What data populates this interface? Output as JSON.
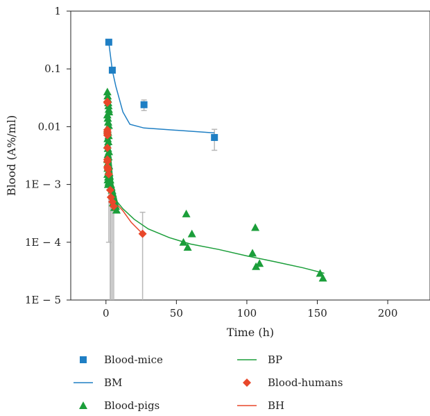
{
  "chart_data": {
    "type": "scatter",
    "title": "",
    "xlabel": "Time (h)",
    "ylabel": "Blood (A%/ml)",
    "xlim": [
      -25,
      230
    ],
    "ylim": [
      1e-05,
      1
    ],
    "yscale": "log",
    "grid": false,
    "x_ticks": [
      {
        "value": 0,
        "label": "0"
      },
      {
        "value": 50,
        "label": "50"
      },
      {
        "value": 100,
        "label": "100"
      },
      {
        "value": 150,
        "label": "150"
      },
      {
        "value": 200,
        "label": "200"
      }
    ],
    "y_ticks": [
      {
        "value": 1,
        "label": "1"
      },
      {
        "value": 0.1,
        "label": "0.1"
      },
      {
        "value": 0.01,
        "label": "0.01"
      },
      {
        "value": 0.001,
        "label": "1E − 3"
      },
      {
        "value": 0.0001,
        "label": "1E − 4"
      },
      {
        "value": 1e-05,
        "label": "1E − 5"
      }
    ],
    "legend_position": "bottom",
    "series": [
      {
        "name": "Blood-mice",
        "kind": "points",
        "marker": "square",
        "color": "#1f7fc4",
        "x": [
          2,
          4.5,
          27,
          77
        ],
        "y": [
          0.29,
          0.095,
          0.024,
          0.0065
        ],
        "err_low": [
          null,
          null,
          0.019,
          0.0039
        ],
        "err_high": [
          null,
          null,
          0.029,
          0.009
        ]
      },
      {
        "name": "BM",
        "kind": "line",
        "color": "#1f7fc4",
        "x": [
          2,
          4.5,
          7,
          12,
          17,
          27,
          77
        ],
        "y": [
          0.29,
          0.095,
          0.05,
          0.018,
          0.011,
          0.0095,
          0.0078
        ]
      },
      {
        "name": "Blood-pigs",
        "kind": "points",
        "marker": "triangle",
        "color": "#1b9e3a",
        "x": [
          1,
          1.2,
          1.4,
          1.6,
          1.8,
          2,
          2.2,
          1,
          1.3,
          1.6,
          2,
          1.1,
          1.5,
          1.9,
          1.2,
          1.7,
          1,
          1.4,
          2.1,
          1.3,
          1.8,
          1,
          1.5,
          2.2,
          1.2,
          1.8,
          1.1,
          1.6,
          1.3,
          1.9,
          1.5,
          2.4,
          2.7,
          3,
          3.5,
          3.9,
          4.2,
          4.8,
          5.5,
          6.2,
          7,
          5,
          6,
          7.5,
          55,
          57,
          58,
          61,
          104,
          106,
          106.5,
          109,
          152,
          154
        ],
        "y": [
          0.04,
          0.034,
          0.03,
          0.026,
          0.023,
          0.02,
          0.018,
          0.016,
          0.014,
          0.012,
          0.0105,
          0.009,
          0.008,
          0.007,
          0.0062,
          0.0055,
          0.0048,
          0.0042,
          0.0037,
          0.0033,
          0.003,
          0.0027,
          0.0024,
          0.0021,
          0.0019,
          0.0017,
          0.0015,
          0.00135,
          0.0012,
          0.0011,
          0.001,
          0.0016,
          0.0014,
          0.0012,
          0.001,
          0.0009,
          0.0008,
          0.0007,
          0.00058,
          0.0005,
          0.00042,
          0.00048,
          0.0004,
          0.00036,
          0.0001,
          0.00031,
          8.2e-05,
          0.00014,
          6.5e-05,
          0.00018,
          3.8e-05,
          4.3e-05,
          2.9e-05,
          2.4e-05
        ]
      },
      {
        "name": "BP",
        "kind": "line",
        "color": "#1b9e3a",
        "x": [
          2,
          3,
          5,
          8,
          12,
          20,
          30,
          45,
          60,
          80,
          100,
          120,
          140,
          155
        ],
        "y": [
          0.04,
          0.004,
          0.001,
          0.0005,
          0.00038,
          0.00025,
          0.00017,
          0.00012,
          9.3e-05,
          7.5e-05,
          5.8e-05,
          4.6e-05,
          3.6e-05,
          2.9e-05
        ]
      },
      {
        "name": "Blood-humans",
        "kind": "points",
        "marker": "diamond",
        "color": "#e8472a",
        "x": [
          1,
          1,
          1,
          1,
          1,
          1,
          1,
          1,
          1,
          1,
          1.2,
          1.5,
          2,
          3,
          3.5,
          4.5,
          5.5,
          26
        ],
        "y": [
          0.027,
          0.026,
          0.0088,
          0.0082,
          0.0076,
          0.0071,
          0.0043,
          0.0027,
          0.0025,
          0.002,
          0.0019,
          0.0018,
          0.0015,
          0.0008,
          0.0006,
          0.0005,
          0.00042,
          0.00014
        ],
        "err_low": [
          null,
          null,
          null,
          null,
          null,
          null,
          null,
          null,
          null,
          null,
          null,
          null,
          0.0001,
          1e-05,
          1e-05,
          1e-05,
          1e-05,
          1e-05
        ],
        "err_high": [
          null,
          null,
          null,
          null,
          null,
          null,
          null,
          null,
          null,
          null,
          null,
          null,
          0.003,
          0.0011,
          0.0009,
          0.0008,
          0.0007,
          0.00033
        ]
      },
      {
        "name": "BH",
        "kind": "line",
        "color": "#e8472a",
        "x": [
          1,
          2,
          3,
          4,
          6,
          8,
          12,
          18,
          26
        ],
        "y": [
          0.027,
          0.006,
          0.002,
          0.001,
          0.0006,
          0.00045,
          0.00035,
          0.00022,
          0.00014
        ]
      }
    ]
  },
  "legend": [
    {
      "label": "Blood-mice",
      "symbol": "square",
      "color": "#1f7fc4"
    },
    {
      "label": "BP",
      "symbol": "line",
      "color": "#1b9e3a"
    },
    {
      "label": "BM",
      "symbol": "line",
      "color": "#1f7fc4"
    },
    {
      "label": "Blood-humans",
      "symbol": "diamond",
      "color": "#e8472a"
    },
    {
      "label": "Blood-pigs",
      "symbol": "triangle",
      "color": "#1b9e3a"
    },
    {
      "label": "BH",
      "symbol": "line",
      "color": "#e8472a"
    }
  ]
}
